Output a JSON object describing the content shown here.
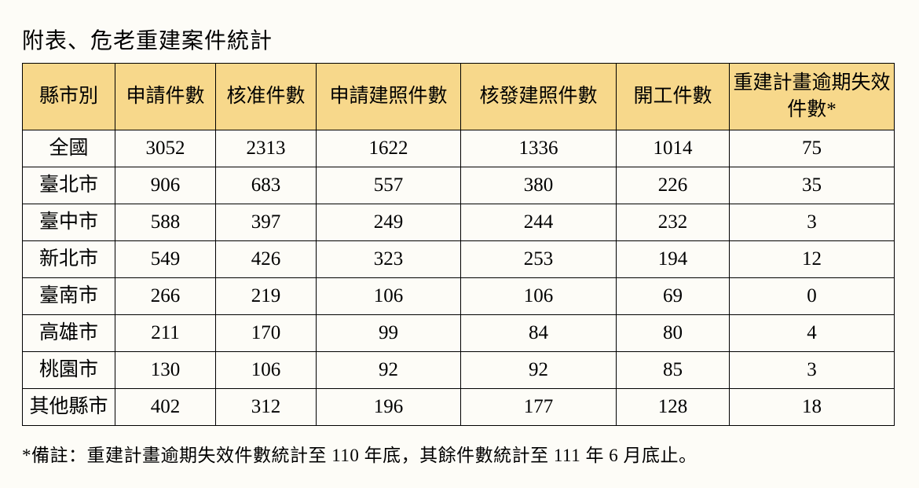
{
  "title": "附表、危老重建案件統計",
  "table": {
    "header_bg": "#f7d88b",
    "border_color": "#000000",
    "columns": [
      "縣市別",
      "申請件數",
      "核准件數",
      "申請建照件數",
      "核發建照件數",
      "開工件數",
      "重建計畫逾期失效件數*"
    ],
    "rows": [
      {
        "label": "全國",
        "v": [
          "3052",
          "2313",
          "1622",
          "1336",
          "1014",
          "75"
        ]
      },
      {
        "label": "臺北市",
        "v": [
          "906",
          "683",
          "557",
          "380",
          "226",
          "35"
        ]
      },
      {
        "label": "臺中市",
        "v": [
          "588",
          "397",
          "249",
          "244",
          "232",
          "3"
        ]
      },
      {
        "label": "新北市",
        "v": [
          "549",
          "426",
          "323",
          "253",
          "194",
          "12"
        ]
      },
      {
        "label": "臺南市",
        "v": [
          "266",
          "219",
          "106",
          "106",
          "69",
          "0"
        ]
      },
      {
        "label": "高雄市",
        "v": [
          "211",
          "170",
          "99",
          "84",
          "80",
          "4"
        ]
      },
      {
        "label": "桃園市",
        "v": [
          "130",
          "106",
          "92",
          "92",
          "85",
          "3"
        ]
      },
      {
        "label": "其他縣市",
        "v": [
          "402",
          "312",
          "196",
          "177",
          "128",
          "18"
        ]
      }
    ]
  },
  "footnote": "*備註：重建計畫逾期失效件數統計至 110 年底，其餘件數統計至 111 年 6 月底止。"
}
